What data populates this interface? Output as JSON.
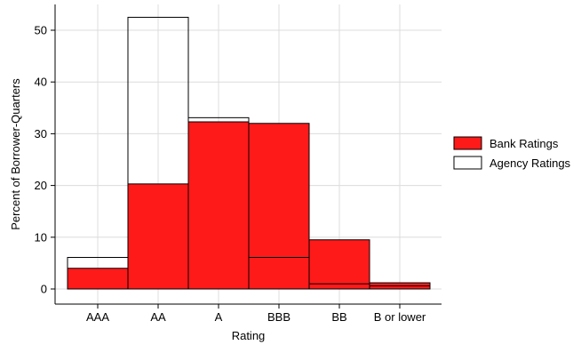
{
  "chart_data": {
    "type": "bar",
    "categories": [
      "AAA",
      "AA",
      "A",
      "BBB",
      "BB",
      "B or lower"
    ],
    "series": [
      {
        "name": "Bank Ratings",
        "values": [
          4.0,
          20.3,
          32.3,
          32.0,
          9.5,
          1.2
        ],
        "color": "#ff1a1a",
        "style": "filled"
      },
      {
        "name": "Agency Ratings",
        "values": [
          6.1,
          52.5,
          33.1,
          6.1,
          1.0,
          0.6
        ],
        "color": "#000000",
        "style": "outline"
      }
    ],
    "xlabel": "Rating",
    "ylabel": "Percent of Borrower-Quarters",
    "ylim": [
      0,
      55
    ],
    "yticks": [
      0,
      10,
      20,
      30,
      40,
      50
    ],
    "grid": true,
    "legend_position": "right"
  }
}
